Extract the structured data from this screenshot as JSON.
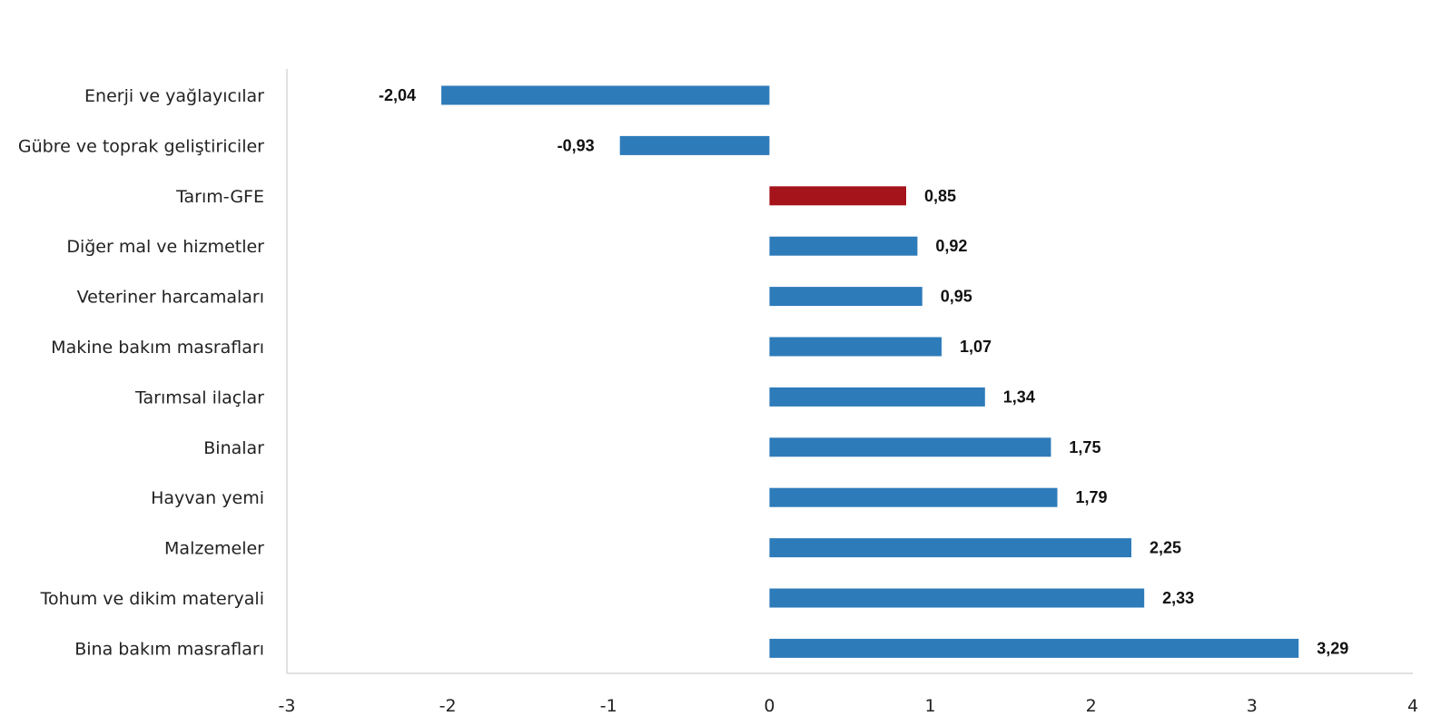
{
  "chart_data": {
    "type": "bar",
    "orientation": "horizontal",
    "categories": [
      "Enerji  ve yağlayıcılar",
      "Gübre ve toprak geliştiriciler",
      "Tarım-GFE",
      "Diğer mal ve hizmetler",
      "Veteriner harcamaları",
      "Makine bakım masrafları",
      "Tarımsal ilaçlar",
      "Binalar",
      "Hayvan yemi",
      "Malzemeler",
      "Tohum ve dikim materyali",
      "Bina bakım masrafları"
    ],
    "values": [
      -2.04,
      -0.93,
      0.85,
      0.92,
      0.95,
      1.07,
      1.34,
      1.75,
      1.79,
      2.25,
      2.33,
      3.29
    ],
    "value_labels": [
      "-2,04",
      "-0,93",
      "0,85",
      "0,92",
      "0,95",
      "1,07",
      "1,34",
      "1,75",
      "1,79",
      "2,25",
      "2,33",
      "3,29"
    ],
    "highlight_category": "Tarım-GFE",
    "xlim": [
      -3,
      4
    ],
    "x_ticks": [
      -3,
      -2,
      -1,
      0,
      1,
      2,
      3,
      4
    ],
    "x_tick_labels": [
      "-3",
      "-2",
      "-1",
      "0",
      "1",
      "2",
      "3",
      "4"
    ],
    "title": "",
    "xlabel": "",
    "ylabel": "",
    "grid": false,
    "legend": "none",
    "colors": {
      "bar": "#2e7bba",
      "highlight": "#a5141b",
      "axis": "#d9d9d9",
      "text": "#222222"
    }
  }
}
